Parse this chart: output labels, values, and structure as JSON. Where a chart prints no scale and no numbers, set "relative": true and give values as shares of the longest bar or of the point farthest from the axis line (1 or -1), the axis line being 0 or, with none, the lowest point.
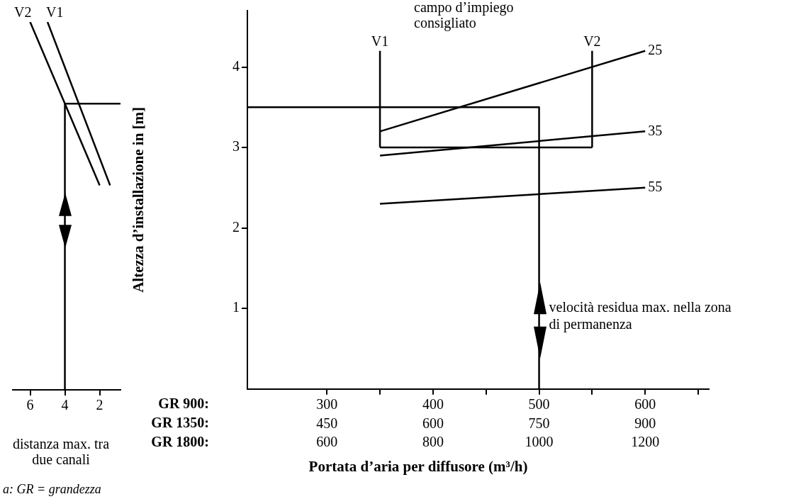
{
  "chart_data": [
    {
      "type": "line",
      "xlabel": "distanza max. tra due canali",
      "xlim": [
        7,
        0.8
      ],
      "xticks": [
        6,
        4,
        2
      ],
      "tick_labels": "x",
      "relative": true,
      "annotations": [
        "a: GR = grandezza"
      ],
      "series": [
        {
          "name": "V2",
          "color": "#000000",
          "x": [
            6,
            2
          ],
          "values": [
            1,
            0.556
          ]
        },
        {
          "name": "V1",
          "color": "#000000",
          "x": [
            5,
            1.4
          ],
          "values": [
            1,
            0.556
          ]
        },
        {
          "color": "#000000",
          "x": [
            0.8,
            4,
            4
          ],
          "values": [
            0.778,
            0.778,
            0
          ]
        }
      ]
    },
    {
      "type": "line",
      "xlabel": "Portata d’aria per diffusore (m³/h)",
      "ylabel": "Altezza d’installazione in [m]",
      "xlim": [
        225,
        660
      ],
      "xticks": [
        300,
        {
          "value": 350,
          "label": null
        },
        400,
        {
          "value": 450,
          "label": null
        },
        500,
        {
          "value": 550,
          "label": null
        },
        600,
        {
          "value": 650,
          "label": null
        }
      ],
      "x2lim": [
        337.5,
        990
      ],
      "x2ticks": [
        450,
        600,
        750,
        900
      ],
      "ylim": [
        0,
        4.7
      ],
      "yticks": [
        1,
        2,
        3,
        4
      ],
      "annotations": [
        "campo d’impiego consigliato",
        "velocità residua max. nella zona di permanenza",
        "GR 900:",
        "GR 1350:",
        "GR 1800:",
        "600",
        "800",
        "1000",
        "1200"
      ],
      "series": [
        {
          "name": "25",
          "color": "#000000",
          "x": [
            350,
            600
          ],
          "values": [
            3.2,
            4.2
          ]
        },
        {
          "name": "35",
          "color": "#000000",
          "x": [
            350,
            600
          ],
          "values": [
            2.9,
            3.2
          ]
        },
        {
          "name": "55",
          "color": "#000000",
          "x": [
            350,
            600
          ],
          "values": [
            2.3,
            2.5
          ]
        },
        {
          "name": "V1",
          "color": "#000000",
          "x": [
            350,
            350
          ],
          "values": [
            3.0,
            4.2
          ]
        },
        {
          "name": "V2",
          "color": "#000000",
          "x": [
            550,
            550
          ],
          "values": [
            3.0,
            4.2
          ]
        },
        {
          "color": "#000000",
          "x": [
            350,
            550
          ],
          "values": [
            3.0,
            3.0
          ]
        },
        {
          "color": "#000000",
          "x": [
            225,
            500,
            500
          ],
          "values": [
            3.5,
            3.5,
            0
          ]
        }
      ]
    }
  ]
}
